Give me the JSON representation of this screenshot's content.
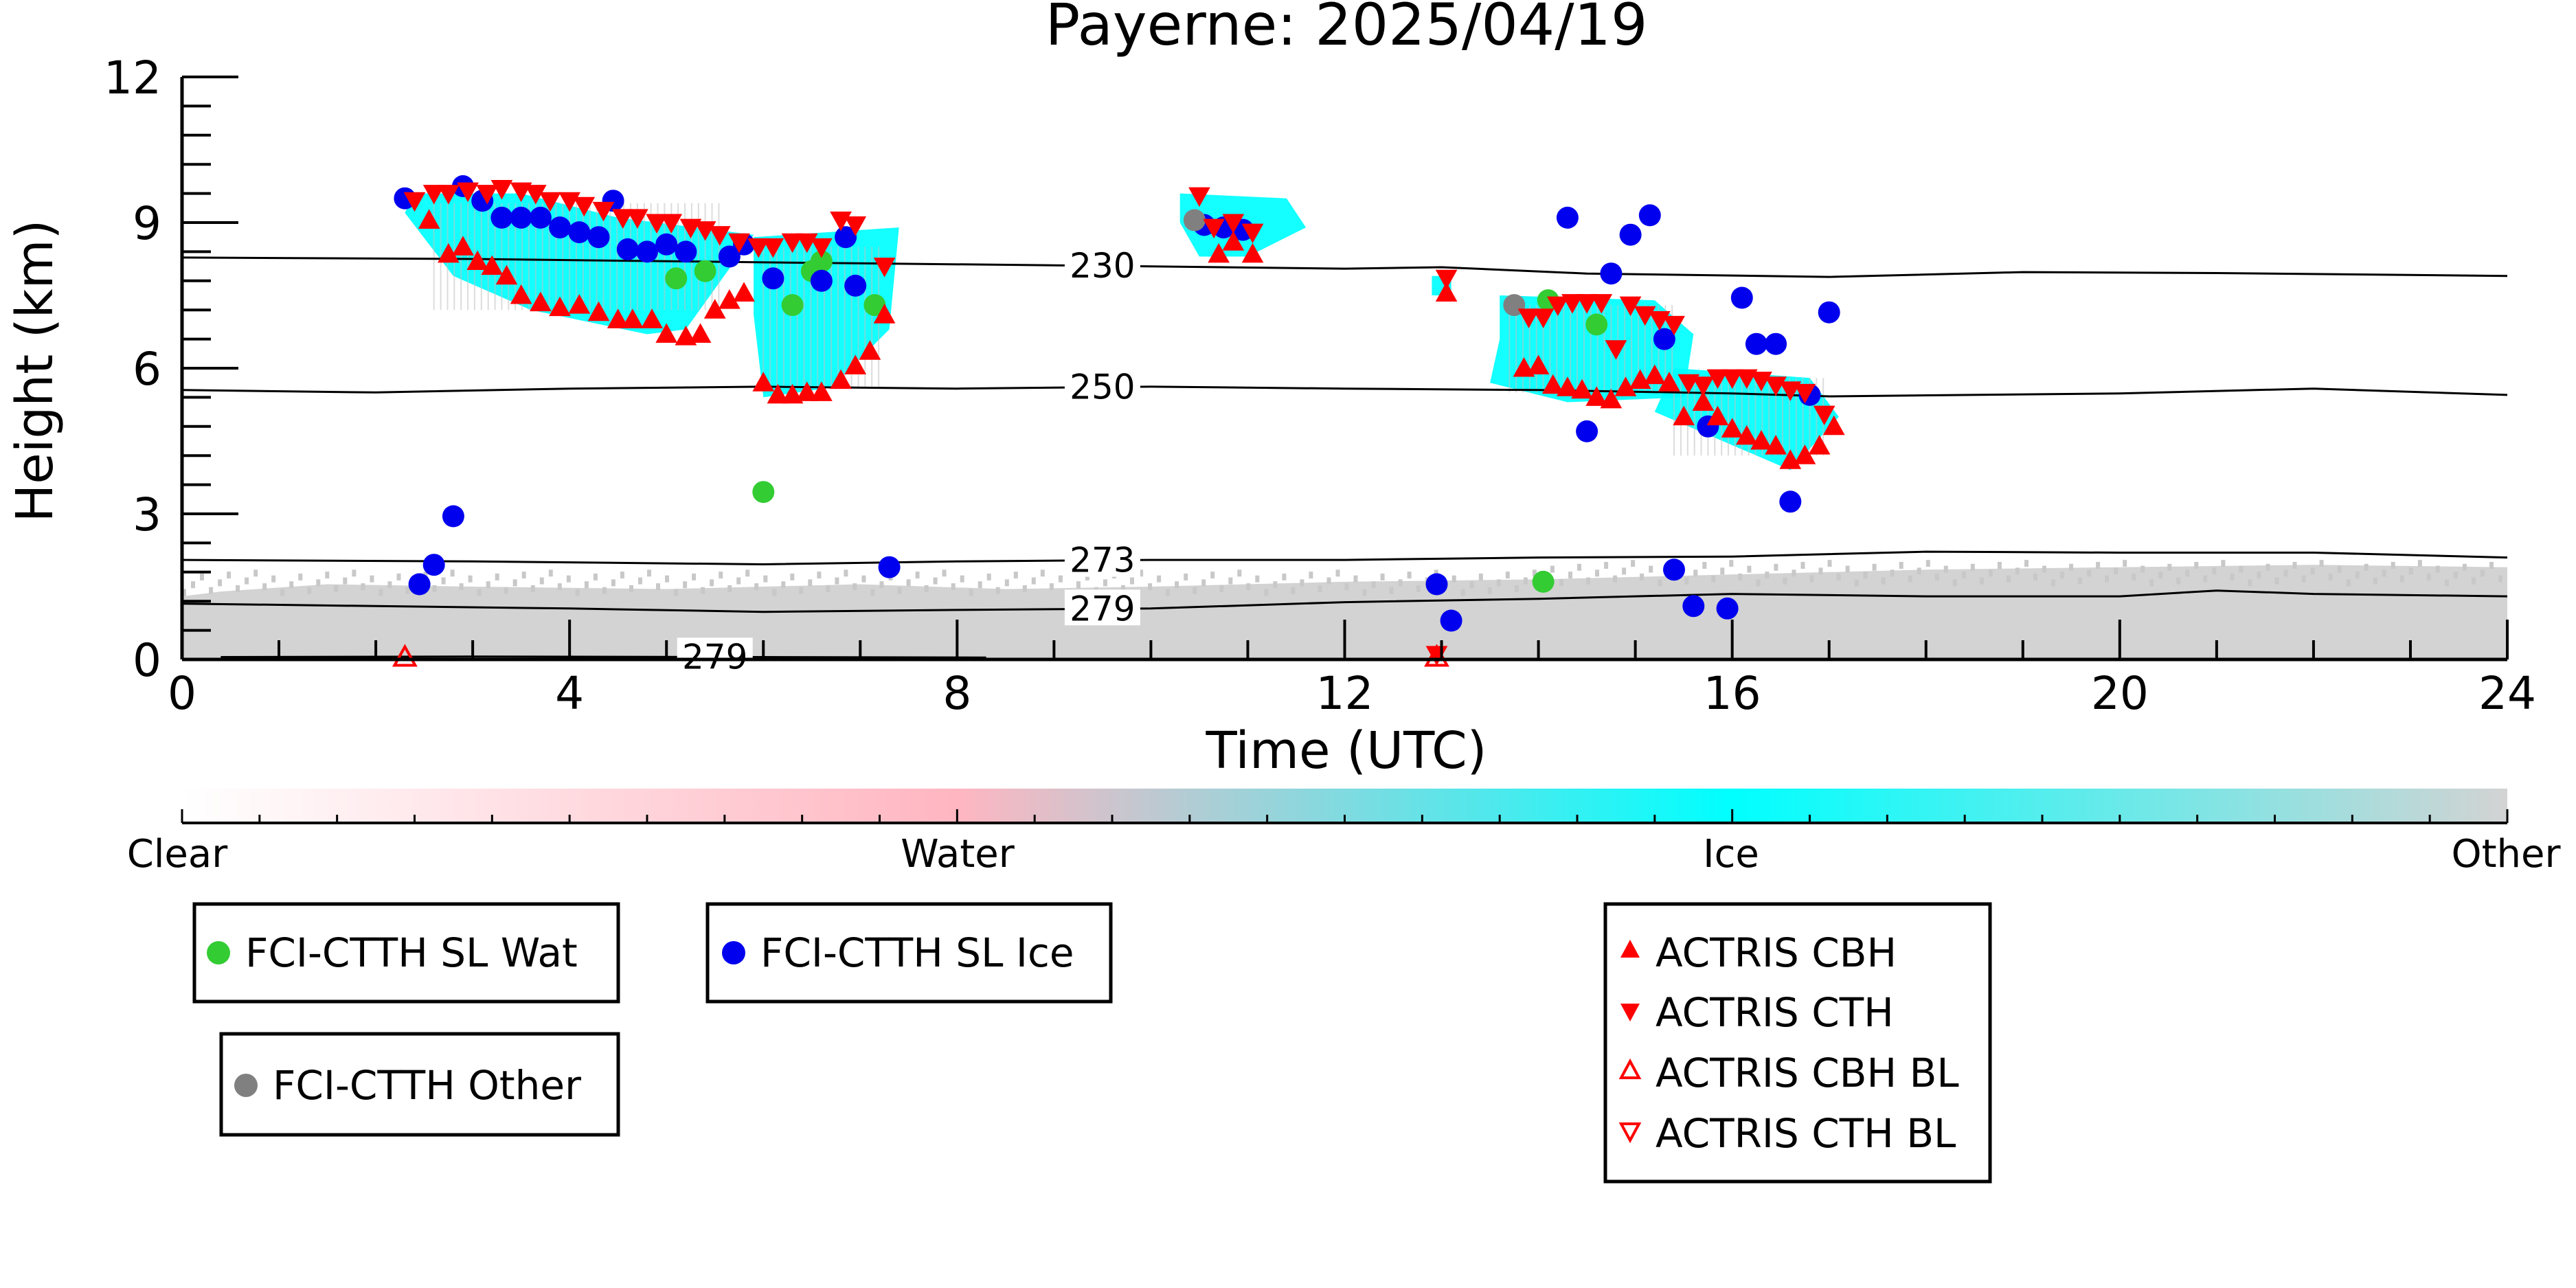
{
  "chart_data": {
    "type": "scatter",
    "title": "Payerne: 2025/04/19",
    "xlabel": "Time (UTC)",
    "ylabel": "Height (km)",
    "xlim": [
      0,
      24
    ],
    "ylim": [
      0,
      12
    ],
    "x_ticks": [
      "0",
      "4",
      "8",
      "12",
      "16",
      "20",
      "24"
    ],
    "y_ticks": [
      "0",
      "3",
      "6",
      "9",
      "12"
    ],
    "colorbar": {
      "labels": [
        "Clear",
        "Water",
        "Ice",
        "Other"
      ],
      "colors": [
        "#ffffff",
        "#ffb6c1",
        "#00ffff",
        "#d3d3d3"
      ]
    },
    "isotherms": [
      {
        "label": "230",
        "label_x": 9.5,
        "points": [
          [
            0,
            8.28
          ],
          [
            3,
            8.25
          ],
          [
            6,
            8.18
          ],
          [
            9,
            8.12
          ],
          [
            12,
            8.05
          ],
          [
            13,
            8.08
          ],
          [
            14.5,
            7.95
          ],
          [
            17,
            7.88
          ],
          [
            19,
            7.98
          ],
          [
            21,
            7.96
          ],
          [
            24,
            7.9
          ]
        ]
      },
      {
        "label": "250",
        "label_x": 9.5,
        "points": [
          [
            0,
            5.55
          ],
          [
            2,
            5.5
          ],
          [
            4,
            5.58
          ],
          [
            6,
            5.62
          ],
          [
            8,
            5.58
          ],
          [
            10,
            5.62
          ],
          [
            12,
            5.58
          ],
          [
            14,
            5.55
          ],
          [
            16,
            5.48
          ],
          [
            17,
            5.42
          ],
          [
            20,
            5.48
          ],
          [
            22,
            5.58
          ],
          [
            24,
            5.45
          ]
        ]
      },
      {
        "label": "273",
        "label_x": 9.5,
        "points": [
          [
            0,
            2.05
          ],
          [
            3,
            2.02
          ],
          [
            6,
            1.96
          ],
          [
            8,
            2.02
          ],
          [
            10,
            2.05
          ],
          [
            12,
            2.05
          ],
          [
            14,
            2.1
          ],
          [
            16,
            2.12
          ],
          [
            18,
            2.22
          ],
          [
            20,
            2.2
          ],
          [
            22,
            2.2
          ],
          [
            24,
            2.1
          ]
        ]
      },
      {
        "label": "279",
        "label_x": 9.5,
        "points": [
          [
            0,
            1.15
          ],
          [
            2,
            1.1
          ],
          [
            4,
            1.05
          ],
          [
            6,
            0.98
          ],
          [
            8,
            1.02
          ],
          [
            10,
            1.05
          ],
          [
            12,
            1.18
          ],
          [
            14,
            1.25
          ],
          [
            16,
            1.35
          ],
          [
            18,
            1.3
          ],
          [
            20,
            1.3
          ],
          [
            21,
            1.42
          ],
          [
            22,
            1.35
          ],
          [
            24,
            1.3
          ]
        ]
      },
      {
        "label": "279",
        "label_x": 5.5,
        "points": [
          [
            0.4,
            0.05
          ],
          [
            3,
            0.06
          ],
          [
            6,
            0.05
          ],
          [
            8.3,
            0.04
          ]
        ]
      }
    ],
    "cloud_regions": [
      {
        "type": "Ice",
        "points": [
          [
            2.4,
            9.6
          ],
          [
            3.5,
            9.6
          ],
          [
            4.5,
            9.1
          ],
          [
            5.9,
            8.75
          ],
          [
            5.2,
            6.8
          ],
          [
            4.8,
            6.7
          ],
          [
            3.6,
            7.2
          ],
          [
            2.8,
            7.9
          ],
          [
            2.3,
            9.2
          ]
        ]
      },
      {
        "type": "Ice",
        "points": [
          [
            5.9,
            8.7
          ],
          [
            7.4,
            8.9
          ],
          [
            7.3,
            6.8
          ],
          [
            6.7,
            5.6
          ],
          [
            6.0,
            5.4
          ],
          [
            5.9,
            7.1
          ]
        ]
      },
      {
        "type": "Ice",
        "points": [
          [
            10.3,
            9.6
          ],
          [
            11.4,
            9.5
          ],
          [
            11.6,
            8.9
          ],
          [
            11.0,
            8.3
          ],
          [
            10.5,
            8.3
          ],
          [
            10.3,
            9.0
          ]
        ]
      },
      {
        "type": "Ice",
        "points": [
          [
            13.6,
            7.5
          ],
          [
            15.2,
            7.4
          ],
          [
            15.6,
            6.7
          ],
          [
            15.5,
            5.4
          ],
          [
            14.3,
            5.3
          ],
          [
            13.5,
            5.7
          ],
          [
            13.6,
            6.6
          ]
        ]
      },
      {
        "type": "Ice",
        "points": [
          [
            15.4,
            6.0
          ],
          [
            16.8,
            5.8
          ],
          [
            17.1,
            5.0
          ],
          [
            16.6,
            3.9
          ],
          [
            15.9,
            4.5
          ],
          [
            15.2,
            5.1
          ]
        ]
      },
      {
        "type": "Ice",
        "points": [
          [
            12.9,
            7.9
          ],
          [
            13.1,
            7.9
          ],
          [
            13.1,
            7.5
          ],
          [
            12.9,
            7.5
          ]
        ]
      }
    ],
    "ground_region": {
      "type": "Other",
      "points": [
        [
          0,
          0
        ],
        [
          0,
          1.3
        ],
        [
          0.4,
          1.4
        ],
        [
          1.5,
          1.55
        ],
        [
          3,
          1.5
        ],
        [
          5,
          1.45
        ],
        [
          7,
          1.55
        ],
        [
          8.5,
          1.45
        ],
        [
          10,
          1.5
        ],
        [
          12,
          1.6
        ],
        [
          14,
          1.65
        ],
        [
          16,
          1.75
        ],
        [
          18,
          1.85
        ],
        [
          20,
          1.9
        ],
        [
          22,
          1.95
        ],
        [
          24,
          1.9
        ],
        [
          24,
          0
        ]
      ]
    },
    "series": [
      {
        "name": "FCI-CTTH SL Wat",
        "marker": "circle",
        "color": "#33cc33",
        "points": [
          [
            5.1,
            7.85
          ],
          [
            5.4,
            8.0
          ],
          [
            6.3,
            7.3
          ],
          [
            6.5,
            8.0
          ],
          [
            6.6,
            8.2
          ],
          [
            7.15,
            7.3
          ],
          [
            6.0,
            3.45
          ],
          [
            14.05,
            1.6
          ],
          [
            14.1,
            7.4
          ],
          [
            14.6,
            6.9
          ]
        ]
      },
      {
        "name": "FCI-CTTH SL Ice",
        "marker": "circle",
        "color": "#0000ee",
        "points": [
          [
            2.3,
            9.5
          ],
          [
            2.9,
            9.75
          ],
          [
            3.1,
            9.45
          ],
          [
            3.3,
            9.1
          ],
          [
            3.5,
            9.1
          ],
          [
            3.7,
            9.1
          ],
          [
            3.9,
            8.9
          ],
          [
            4.1,
            8.8
          ],
          [
            4.3,
            8.7
          ],
          [
            4.45,
            9.45
          ],
          [
            4.6,
            8.45
          ],
          [
            4.8,
            8.4
          ],
          [
            5.0,
            8.55
          ],
          [
            5.2,
            8.4
          ],
          [
            5.65,
            8.3
          ],
          [
            5.8,
            8.55
          ],
          [
            6.1,
            7.85
          ],
          [
            6.6,
            7.8
          ],
          [
            6.85,
            8.7
          ],
          [
            6.95,
            7.7
          ],
          [
            7.3,
            1.9
          ],
          [
            2.45,
            1.55
          ],
          [
            2.6,
            1.95
          ],
          [
            2.8,
            2.95
          ],
          [
            10.55,
            8.95
          ],
          [
            10.75,
            8.9
          ],
          [
            10.95,
            8.85
          ],
          [
            12.95,
            1.55
          ],
          [
            13.1,
            0.8
          ],
          [
            14.3,
            9.1
          ],
          [
            14.5,
            4.7
          ],
          [
            14.75,
            7.95
          ],
          [
            14.95,
            8.75
          ],
          [
            15.15,
            9.15
          ],
          [
            15.3,
            6.6
          ],
          [
            15.4,
            1.85
          ],
          [
            15.6,
            1.1
          ],
          [
            15.75,
            4.8
          ],
          [
            15.95,
            1.05
          ],
          [
            16.1,
            7.45
          ],
          [
            16.25,
            6.5
          ],
          [
            16.45,
            6.5
          ],
          [
            16.6,
            3.25
          ],
          [
            16.8,
            5.45
          ],
          [
            17.0,
            7.15
          ]
        ]
      },
      {
        "name": "FCI-CTTH Other",
        "marker": "circle",
        "color": "#808080",
        "points": [
          [
            10.45,
            9.05
          ],
          [
            13.75,
            7.3
          ]
        ]
      },
      {
        "name": "ACTRIS CBH",
        "marker": "triangle-up",
        "color": "#ff0000",
        "points": [
          [
            2.55,
            9.05
          ],
          [
            2.75,
            8.35
          ],
          [
            2.9,
            8.5
          ],
          [
            3.05,
            8.2
          ],
          [
            3.2,
            8.1
          ],
          [
            3.35,
            7.9
          ],
          [
            3.5,
            7.5
          ],
          [
            3.7,
            7.35
          ],
          [
            3.9,
            7.25
          ],
          [
            4.1,
            7.3
          ],
          [
            4.3,
            7.15
          ],
          [
            4.5,
            7.0
          ],
          [
            4.65,
            7.0
          ],
          [
            4.85,
            7.0
          ],
          [
            5.0,
            6.7
          ],
          [
            5.2,
            6.65
          ],
          [
            5.35,
            6.7
          ],
          [
            5.5,
            7.2
          ],
          [
            5.65,
            7.4
          ],
          [
            5.8,
            7.55
          ],
          [
            6.0,
            5.7
          ],
          [
            6.15,
            5.45
          ],
          [
            6.3,
            5.45
          ],
          [
            6.45,
            5.5
          ],
          [
            6.6,
            5.5
          ],
          [
            6.8,
            5.75
          ],
          [
            6.95,
            6.05
          ],
          [
            7.1,
            6.35
          ],
          [
            7.25,
            7.1
          ],
          [
            10.7,
            8.35
          ],
          [
            10.85,
            8.6
          ],
          [
            11.05,
            8.35
          ],
          [
            13.05,
            7.55
          ],
          [
            13.85,
            6.0
          ],
          [
            14.0,
            6.05
          ],
          [
            14.15,
            5.65
          ],
          [
            14.3,
            5.6
          ],
          [
            14.45,
            5.55
          ],
          [
            14.6,
            5.4
          ],
          [
            14.75,
            5.35
          ],
          [
            14.9,
            5.6
          ],
          [
            15.05,
            5.75
          ],
          [
            15.2,
            5.85
          ],
          [
            15.35,
            5.7
          ],
          [
            15.5,
            5.0
          ],
          [
            15.7,
            5.3
          ],
          [
            15.85,
            5.0
          ],
          [
            16.0,
            4.75
          ],
          [
            16.15,
            4.6
          ],
          [
            16.3,
            4.5
          ],
          [
            16.45,
            4.4
          ],
          [
            16.6,
            4.1
          ],
          [
            16.75,
            4.2
          ],
          [
            16.9,
            4.4
          ],
          [
            17.05,
            4.8
          ]
        ]
      },
      {
        "name": "ACTRIS CTH",
        "marker": "triangle-down",
        "color": "#ff0000",
        "points": [
          [
            2.4,
            9.45
          ],
          [
            2.6,
            9.6
          ],
          [
            2.75,
            9.6
          ],
          [
            2.95,
            9.65
          ],
          [
            3.15,
            9.6
          ],
          [
            3.3,
            9.7
          ],
          [
            3.5,
            9.65
          ],
          [
            3.65,
            9.6
          ],
          [
            3.8,
            9.45
          ],
          [
            4.0,
            9.45
          ],
          [
            4.15,
            9.35
          ],
          [
            4.35,
            9.25
          ],
          [
            4.55,
            9.1
          ],
          [
            4.7,
            9.1
          ],
          [
            4.9,
            9.0
          ],
          [
            5.05,
            9.0
          ],
          [
            5.25,
            8.9
          ],
          [
            5.4,
            8.85
          ],
          [
            5.55,
            8.75
          ],
          [
            5.75,
            8.6
          ],
          [
            5.95,
            8.5
          ],
          [
            6.1,
            8.5
          ],
          [
            6.3,
            8.6
          ],
          [
            6.45,
            8.6
          ],
          [
            6.6,
            8.5
          ],
          [
            6.8,
            9.05
          ],
          [
            6.95,
            8.95
          ],
          [
            7.25,
            8.1
          ],
          [
            10.5,
            9.55
          ],
          [
            10.65,
            8.9
          ],
          [
            10.85,
            9.0
          ],
          [
            11.05,
            8.8
          ],
          [
            13.05,
            7.85
          ],
          [
            13.9,
            7.05
          ],
          [
            14.05,
            7.05
          ],
          [
            14.2,
            7.3
          ],
          [
            14.35,
            7.35
          ],
          [
            14.5,
            7.35
          ],
          [
            14.65,
            7.35
          ],
          [
            14.8,
            6.4
          ],
          [
            14.95,
            7.3
          ],
          [
            15.1,
            7.1
          ],
          [
            15.25,
            7.0
          ],
          [
            15.4,
            6.9
          ],
          [
            15.55,
            5.7
          ],
          [
            15.7,
            5.65
          ],
          [
            15.85,
            5.8
          ],
          [
            16.0,
            5.8
          ],
          [
            16.15,
            5.8
          ],
          [
            16.3,
            5.75
          ],
          [
            16.45,
            5.65
          ],
          [
            16.6,
            5.55
          ],
          [
            16.75,
            5.5
          ],
          [
            16.95,
            5.05
          ],
          [
            12.95,
            0.1
          ]
        ]
      },
      {
        "name": "ACTRIS CBH BL",
        "marker": "triangle-up-open",
        "color": "#ff0000",
        "points": [
          [
            2.3,
            0.05
          ],
          [
            12.95,
            0.05
          ]
        ]
      },
      {
        "name": "ACTRIS CTH BL",
        "marker": "triangle-down-open",
        "color": "#ff0000",
        "points": []
      }
    ],
    "legend": {
      "box1": [
        "FCI-CTTH SL Wat"
      ],
      "box2": [
        "FCI-CTTH SL Ice"
      ],
      "box3": [
        "FCI-CTTH Other"
      ],
      "box4": [
        "ACTRIS CBH",
        "ACTRIS CTH",
        "ACTRIS CBH BL",
        "ACTRIS CTH BL"
      ]
    }
  }
}
